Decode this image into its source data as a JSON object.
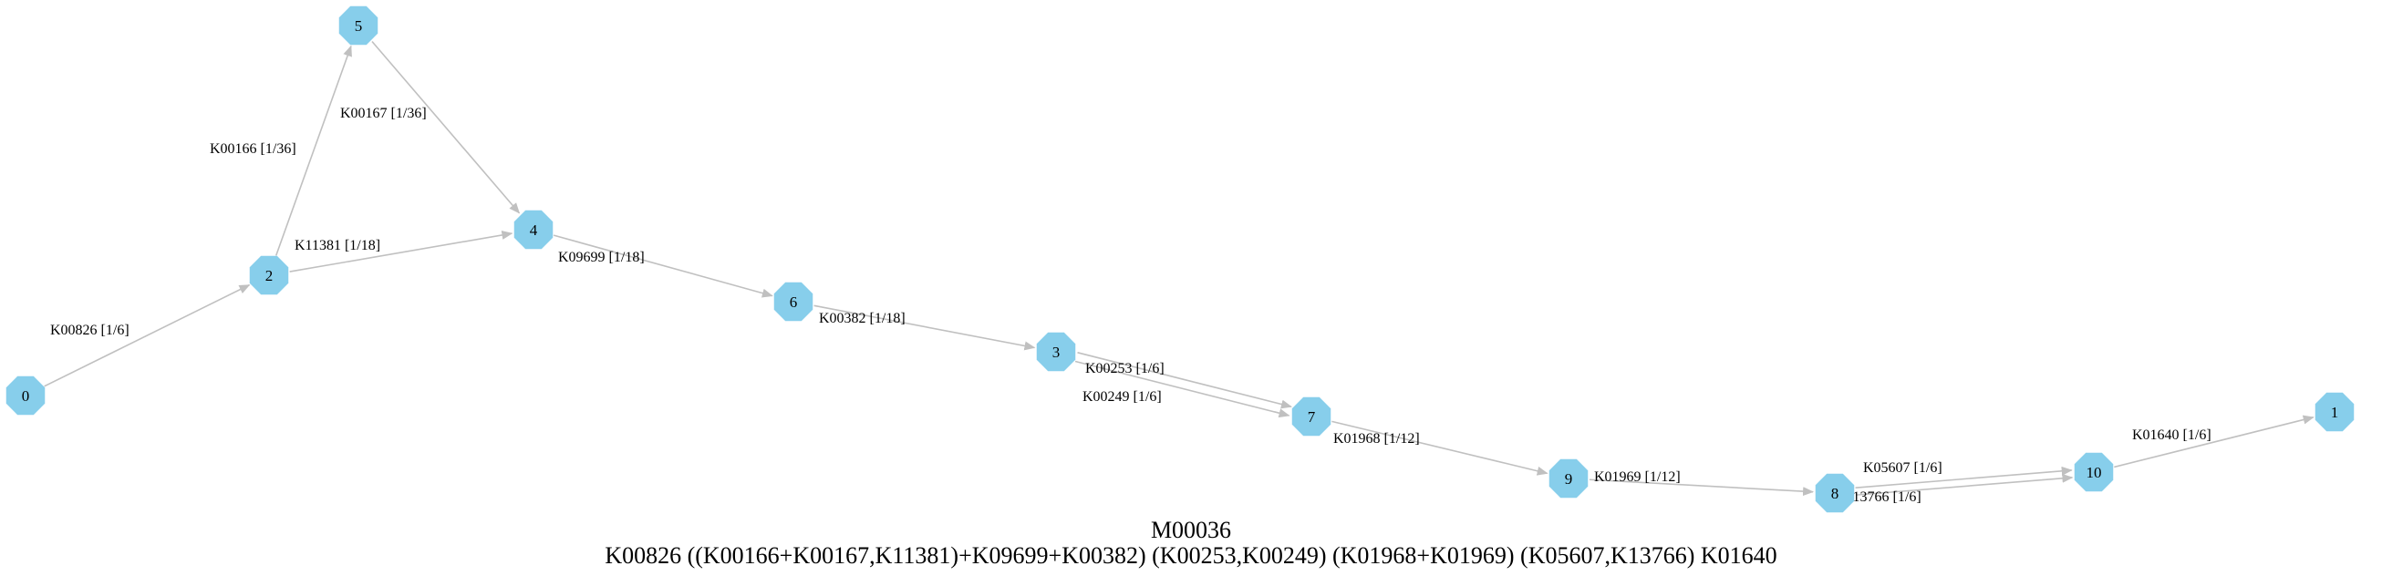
{
  "diagram": {
    "title": "M00036",
    "formula": "K00826 ((K00166+K00167,K11381)+K09699+K00382) (K00253,K00249) (K01968+K01969) (K05607,K13766) K01640",
    "node_color": "#87ceeb",
    "edge_color": "#c0c0c0",
    "nodes": [
      {
        "id": "0",
        "label": "0"
      },
      {
        "id": "1",
        "label": "1"
      },
      {
        "id": "2",
        "label": "2"
      },
      {
        "id": "3",
        "label": "3"
      },
      {
        "id": "4",
        "label": "4"
      },
      {
        "id": "5",
        "label": "5"
      },
      {
        "id": "6",
        "label": "6"
      },
      {
        "id": "7",
        "label": "7"
      },
      {
        "id": "8",
        "label": "8"
      },
      {
        "id": "9",
        "label": "9"
      },
      {
        "id": "10",
        "label": "10"
      }
    ],
    "edges": [
      {
        "from": "0",
        "to": "2",
        "label": "K00826 [1/6]"
      },
      {
        "from": "2",
        "to": "5",
        "label": "K00166 [1/36]"
      },
      {
        "from": "5",
        "to": "4",
        "label": "K00167 [1/36]"
      },
      {
        "from": "2",
        "to": "4",
        "label": "K11381 [1/18]"
      },
      {
        "from": "4",
        "to": "6",
        "label": "K09699 [1/18]"
      },
      {
        "from": "6",
        "to": "3",
        "label": "K00382 [1/18]"
      },
      {
        "from": "3",
        "to": "7",
        "label": "K00253 [1/6]"
      },
      {
        "from": "3",
        "to": "7",
        "label": "K00249 [1/6]"
      },
      {
        "from": "7",
        "to": "9",
        "label": "K01968 [1/12]"
      },
      {
        "from": "9",
        "to": "8",
        "label": "K01969 [1/12]"
      },
      {
        "from": "8",
        "to": "10",
        "label": "K05607 [1/6]"
      },
      {
        "from": "8",
        "to": "10",
        "label": "K13766 [1/6]"
      },
      {
        "from": "10",
        "to": "1",
        "label": "K01640 [1/6]"
      }
    ]
  }
}
